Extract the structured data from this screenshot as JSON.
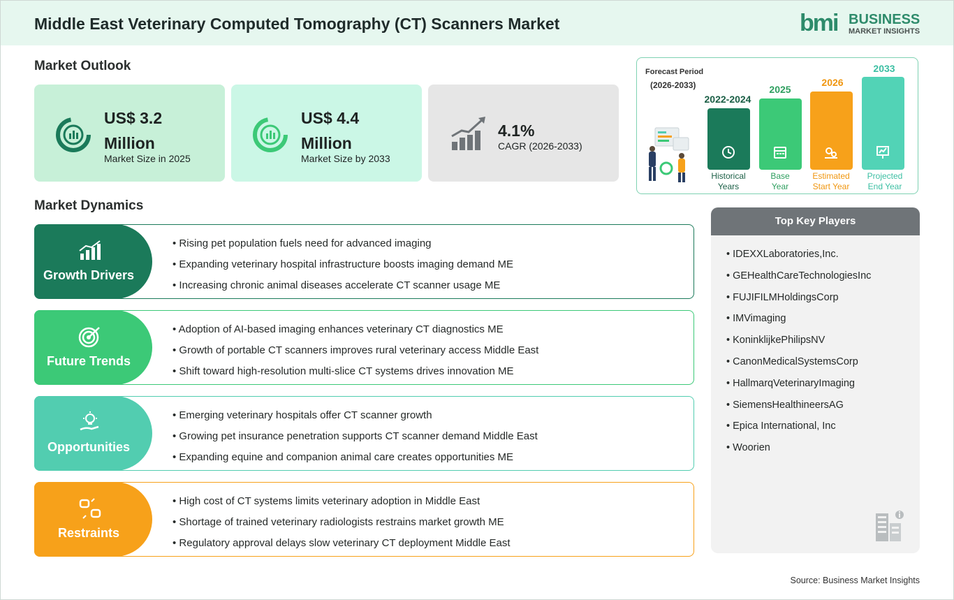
{
  "header": {
    "title": "Middle East Veterinary Computed Tomography (CT) Scanners Market",
    "logo_mark": "bmi",
    "logo_line1": "BUSINESS",
    "logo_line2": "MARKET INSIGHTS"
  },
  "outlook": {
    "heading": "Market Outlook",
    "cards": [
      {
        "value": "US$ 3.2 Million",
        "label": "Market Size in 2025",
        "icon": "donut-chart-icon",
        "bg": "#c7f0d8"
      },
      {
        "value": "US$ 4.4 Million",
        "label": "Market Size by 2033",
        "icon": "donut-chart-icon",
        "bg": "#cbf7e6"
      },
      {
        "value": "4.1%",
        "label": "CAGR (2026-2033)",
        "icon": "growth-bars-icon",
        "bg": "#e6e6e6"
      }
    ]
  },
  "forecast": {
    "title_line1": "Forecast Period",
    "title_line2": "(2026-2033)",
    "bars": [
      {
        "year": "2022-2024",
        "line1": "Historical",
        "line2": "Years",
        "color": "#1b7a5a",
        "text_color": "#1b5f46",
        "icon": "history-icon"
      },
      {
        "year": "2025",
        "line1": "Base",
        "line2": "Year",
        "color": "#3cc977",
        "text_color": "#2e9f5f",
        "icon": "calendar-icon"
      },
      {
        "year": "2026",
        "line1": "Estimated",
        "line2": "Start Year",
        "color": "#f7a11a",
        "text_color": "#f0960f",
        "icon": "gears-icon"
      },
      {
        "year": "2033",
        "line1": "Projected",
        "line2": "End Year",
        "color": "#52d3b6",
        "text_color": "#3cbfa3",
        "icon": "presentation-icon"
      }
    ]
  },
  "dynamics": {
    "heading": "Market Dynamics",
    "blocks": [
      {
        "label": "Growth Drivers",
        "color": "#1b7a5a",
        "icon": "growth-chart-icon",
        "items": [
          "Rising pet population fuels need for advanced imaging",
          "Expanding veterinary hospital infrastructure boosts imaging demand ME",
          "Increasing chronic animal diseases accelerate CT scanner usage ME"
        ]
      },
      {
        "label": "Future Trends",
        "color": "#3cc977",
        "icon": "target-icon",
        "items": [
          "Adoption of AI-based imaging enhances veterinary CT diagnostics ME",
          "Growth of portable CT scanners improves rural veterinary access Middle East",
          "Shift toward high-resolution multi-slice CT systems drives innovation ME"
        ]
      },
      {
        "label": "Opportunities",
        "color": "#52cdb0",
        "icon": "lightbulb-hand-icon",
        "items": [
          "Emerging veterinary hospitals offer CT scanner growth",
          "Growing pet insurance penetration supports CT scanner demand Middle East",
          "Expanding equine and companion animal care creates opportunities ME"
        ]
      },
      {
        "label": "Restraints",
        "color": "#f7a11a",
        "icon": "broken-link-icon",
        "items": [
          "High cost of CT systems limits veterinary adoption in Middle East",
          "Shortage of trained veterinary radiologists restrains market growth ME",
          "Regulatory approval delays slow veterinary CT deployment Middle East"
        ]
      }
    ]
  },
  "players": {
    "heading": "Top Key Players",
    "items": [
      "IDEXXLaboratories,Inc.",
      "GEHealthCareTechnologiesInc",
      "FUJIFILMHoldingsCorp",
      "IMVimaging",
      "KoninklijkePhilipsNV",
      "CanonMedicalSystemsCorp",
      "HallmarqVeterinaryImaging",
      "SiemensHealthineersAG",
      "Epica International, Inc",
      "Woorien"
    ]
  },
  "source": "Source: Business Market Insights"
}
